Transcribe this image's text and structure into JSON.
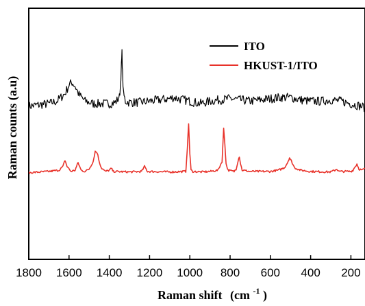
{
  "chart_data": {
    "type": "line",
    "title": "",
    "xlabel": "Raman shift",
    "xunit_base": "(cm",
    "xunit_sup": "-1",
    "xunit_close": ")",
    "ylabel": "Raman counts (a.u)",
    "xlim": [
      1800,
      130
    ],
    "x_reversed": true,
    "ylim": [
      0,
      10
    ],
    "y_ticks_labeled": false,
    "x_ticks": [
      1800,
      1600,
      1400,
      1200,
      1000,
      800,
      600,
      400,
      200
    ],
    "grid": false,
    "legend_position": "top-right",
    "series": [
      {
        "name": "ITO",
        "color": "#000000",
        "noise": 0.18,
        "x": [
          1800,
          1750,
          1700,
          1660,
          1620,
          1600,
          1585,
          1570,
          1550,
          1520,
          1480,
          1440,
          1400,
          1370,
          1350,
          1345,
          1340,
          1337,
          1334,
          1330,
          1320,
          1300,
          1250,
          1200,
          1150,
          1100,
          1080,
          1060,
          1000,
          950,
          900,
          850,
          800,
          750,
          700,
          650,
          600,
          550,
          500,
          450,
          400,
          350,
          300,
          250,
          200,
          150,
          130
        ],
        "y": [
          6.1,
          6.15,
          6.2,
          6.3,
          6.6,
          6.95,
          7.05,
          6.9,
          6.55,
          6.3,
          6.2,
          6.2,
          6.2,
          6.25,
          6.45,
          6.9,
          7.7,
          8.2,
          7.4,
          6.6,
          6.3,
          6.25,
          6.25,
          6.3,
          6.35,
          6.4,
          6.45,
          6.4,
          6.3,
          6.2,
          6.3,
          6.35,
          6.4,
          6.35,
          6.3,
          6.35,
          6.4,
          6.45,
          6.45,
          6.35,
          6.3,
          6.3,
          6.35,
          6.3,
          6.2,
          6.1,
          6.05
        ]
      },
      {
        "name": "HKUST-1/ITO",
        "color": "#e8322a",
        "noise": 0.04,
        "x": [
          1800,
          1700,
          1650,
          1630,
          1620,
          1610,
          1590,
          1570,
          1555,
          1540,
          1520,
          1500,
          1480,
          1470,
          1460,
          1450,
          1440,
          1420,
          1400,
          1390,
          1380,
          1300,
          1240,
          1225,
          1210,
          1100,
          1020,
          1012,
          1006,
          1000,
          994,
          985,
          940,
          900,
          860,
          840,
          832,
          826,
          820,
          810,
          780,
          770,
          760,
          754,
          748,
          740,
          700,
          600,
          560,
          530,
          515,
          505,
          495,
          480,
          450,
          400,
          300,
          280,
          270,
          260,
          200,
          190,
          178,
          170,
          160,
          145,
          130
        ],
        "y": [
          3.45,
          3.5,
          3.55,
          3.7,
          3.95,
          3.7,
          3.5,
          3.55,
          3.85,
          3.55,
          3.5,
          3.6,
          3.9,
          4.3,
          4.25,
          3.9,
          3.65,
          3.5,
          3.55,
          3.62,
          3.5,
          3.48,
          3.5,
          3.7,
          3.5,
          3.48,
          3.5,
          4.5,
          5.4,
          4.2,
          3.55,
          3.5,
          3.48,
          3.5,
          3.55,
          3.9,
          5.2,
          4.6,
          3.8,
          3.55,
          3.5,
          3.6,
          3.95,
          4.1,
          3.8,
          3.55,
          3.5,
          3.5,
          3.55,
          3.65,
          3.85,
          4.05,
          3.9,
          3.65,
          3.55,
          3.5,
          3.48,
          3.55,
          3.6,
          3.5,
          3.5,
          3.55,
          3.7,
          3.8,
          3.6,
          3.55,
          3.62
        ]
      }
    ]
  }
}
